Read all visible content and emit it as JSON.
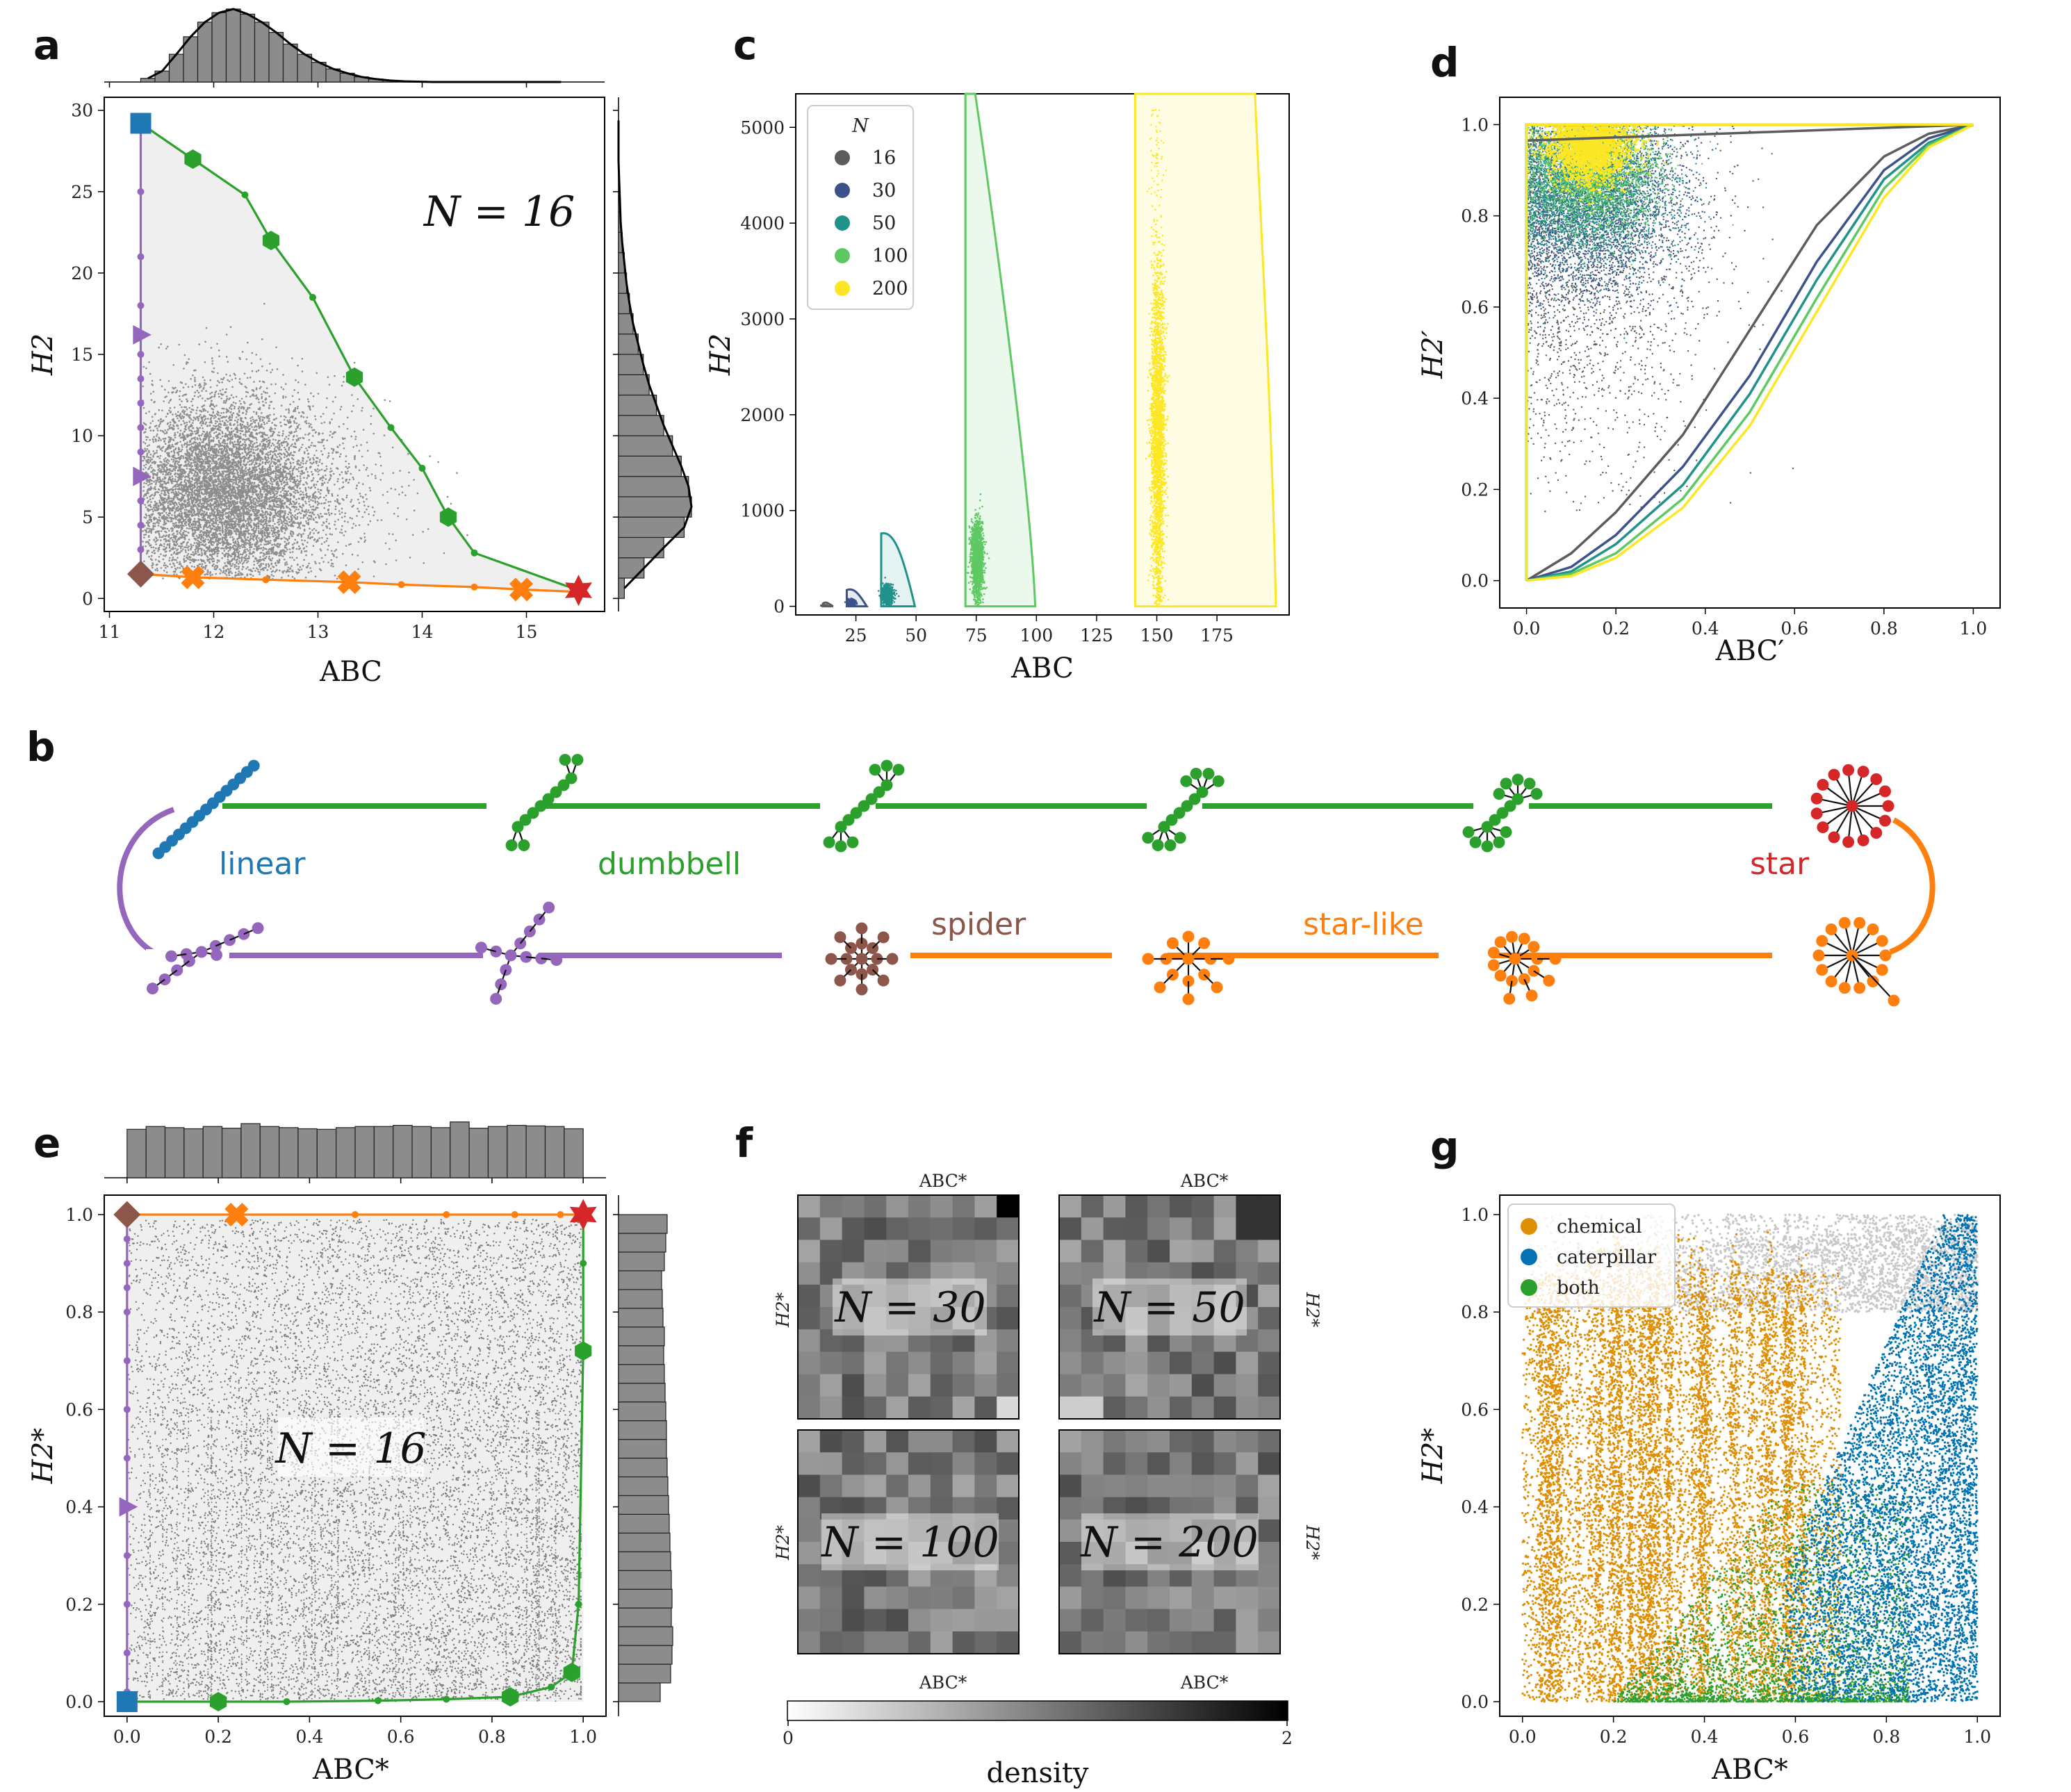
{
  "panels": {
    "a": "a",
    "b": "b",
    "c": "c",
    "d": "d",
    "e": "e",
    "f": "f",
    "g": "g"
  },
  "colors": {
    "linear": "#1f77b4",
    "dumbbell": "#2ca02c",
    "star": "#d62728",
    "spider": "#8c564b",
    "starlike": "#ff7f0e",
    "purple": "#9467bd",
    "gray": "#8c8c8c",
    "fill": "#efefef",
    "chemical": "#de8f05",
    "caterpillar": "#0173b2",
    "both": "#2ca02c",
    "lightgray": "#c8c8c8"
  },
  "panel_b": {
    "labels": {
      "linear": "linear",
      "dumbbell": "dumbbell",
      "star": "star",
      "spider": "spider",
      "starlike": "star-like"
    },
    "icons": [
      "line-tree-icon",
      "dumbbell-tree-icon",
      "star-tree-icon",
      "spider-tree-icon",
      "starlike-tree-icon",
      "broom-tree-icon"
    ]
  },
  "panel_f": {
    "labels": [
      "N = 30",
      "N = 50",
      "N = 100",
      "N = 200"
    ],
    "xlabel": "ABC*",
    "ylabel": "H2*",
    "colorbar": {
      "label": "density",
      "min": "0",
      "max": "2"
    }
  },
  "chart_data": [
    {
      "id": "a",
      "type": "scatter",
      "annotation": "N = 16",
      "xlabel": "ABC",
      "ylabel": "H2",
      "xlim": [
        10.95,
        15.75
      ],
      "ylim": [
        -0.8,
        30.8
      ],
      "xticks": [
        11,
        12,
        13,
        14,
        15
      ],
      "yticks": [
        0,
        5,
        10,
        15,
        20,
        25,
        30
      ],
      "cloud": {
        "x_mean": 12.1,
        "x_sd": 0.45,
        "y_mean": 6.5,
        "y_sd": 3.0
      },
      "hist_x": {
        "range": [
          11.3,
          15.4
        ],
        "counts": [
          0.05,
          0.15,
          0.38,
          0.62,
          0.82,
          0.95,
          1.0,
          0.93,
          0.82,
          0.68,
          0.52,
          0.38,
          0.27,
          0.18,
          0.12,
          0.07,
          0.04,
          0.02,
          0.01,
          0.005,
          0.0,
          0.0,
          0.0,
          0.0,
          0.0,
          0.0,
          0.0,
          0.0,
          0.0,
          0.0
        ]
      },
      "hist_y": {
        "range": [
          0,
          30
        ],
        "counts": [
          0.08,
          0.35,
          0.62,
          0.9,
          1.0,
          0.96,
          0.86,
          0.74,
          0.62,
          0.52,
          0.42,
          0.34,
          0.27,
          0.2,
          0.15,
          0.11,
          0.08,
          0.05,
          0.03,
          0.02,
          0.01,
          0.0,
          0.0,
          0.0
        ]
      },
      "series": [
        {
          "name": "dumbbell",
          "color": "#2ca02c",
          "x": [
            11.3,
            11.8,
            12.3,
            12.55,
            12.95,
            13.35,
            13.7,
            14.0,
            14.25,
            14.5,
            15.5
          ],
          "y": [
            29.2,
            27.0,
            24.8,
            22.0,
            18.5,
            13.6,
            10.5,
            8.0,
            5.0,
            2.8,
            0.5
          ],
          "markers": [
            1,
            3,
            5,
            8
          ]
        },
        {
          "name": "star-like",
          "color": "#ff7f0e",
          "x": [
            11.3,
            11.8,
            12.5,
            13.3,
            13.8,
            14.5,
            14.95,
            15.5
          ],
          "y": [
            1.5,
            1.3,
            1.15,
            1.0,
            0.85,
            0.7,
            0.55,
            0.4
          ],
          "markers": [
            1,
            3,
            6
          ]
        },
        {
          "name": "spider-line",
          "color": "#9467bd",
          "x": [
            11.3,
            11.3,
            11.3,
            11.3,
            11.3,
            11.3,
            11.3,
            11.3,
            11.3,
            11.3,
            11.3,
            11.3,
            11.3,
            11.3,
            11.3
          ],
          "y": [
            1.5,
            3,
            4.5,
            6,
            7.5,
            9,
            10.5,
            12,
            13.5,
            15,
            16.2,
            18,
            21,
            25,
            29.2
          ],
          "markers": [
            4,
            10
          ]
        }
      ],
      "endpoints": [
        {
          "name": "linear",
          "x": 11.3,
          "y": 29.2,
          "color": "#1f77b4",
          "shape": "square"
        },
        {
          "name": "spider",
          "x": 11.3,
          "y": 1.5,
          "color": "#8c564b",
          "shape": "diamond"
        },
        {
          "name": "star",
          "x": 15.5,
          "y": 0.5,
          "color": "#d62728",
          "shape": "star"
        }
      ],
      "xtick_labels": [
        "11",
        "12",
        "13",
        "14",
        "15"
      ],
      "ytick_labels": [
        "0",
        "5",
        "10",
        "15",
        "20",
        "25",
        "30"
      ]
    },
    {
      "id": "c",
      "type": "scatter",
      "xlabel": "ABC",
      "ylabel": "H2",
      "xlim": [
        0,
        205
      ],
      "ylim": [
        -90,
        5350
      ],
      "xticks": [
        25,
        50,
        75,
        100,
        125,
        150,
        175
      ],
      "yticks": [
        0,
        1000,
        2000,
        3000,
        4000,
        5000
      ],
      "legend_title": "N",
      "legend": [
        {
          "label": "16",
          "color": "#5c5c5c"
        },
        {
          "label": "30",
          "color": "#3b528b"
        },
        {
          "label": "50",
          "color": "#21918c"
        },
        {
          "label": "100",
          "color": "#5ec962"
        },
        {
          "label": "200",
          "color": "#fde725"
        }
      ],
      "groups": [
        {
          "N": "16",
          "color": "#5c5c5c",
          "xmin": 11.3,
          "xmax": 15.5,
          "ymax": 29,
          "cloud": [
            12,
            0.5,
            7,
            3
          ]
        },
        {
          "N": "30",
          "color": "#3b528b",
          "xmin": 21.2,
          "xmax": 29.5,
          "ymax": 170,
          "cloud": [
            23,
            0.8,
            40,
            15
          ]
        },
        {
          "N": "50",
          "color": "#21918c",
          "xmin": 35.5,
          "xmax": 49.5,
          "ymax": 760,
          "cloud": [
            38,
            1.2,
            120,
            50
          ]
        },
        {
          "N": "100",
          "color": "#5ec962",
          "xmin": 70.5,
          "xmax": 99.5,
          "ymax": 5350,
          "cloud": [
            75.5,
            1.2,
            500,
            200
          ]
        },
        {
          "N": "200",
          "color": "#fde725",
          "xmin": 141,
          "xmax": 199.5,
          "ymax": 5350,
          "cloud": [
            150.5,
            1.4,
            1800,
            900
          ]
        }
      ],
      "xtick_labels": [
        "25",
        "50",
        "75",
        "100",
        "125",
        "150",
        "175"
      ],
      "ytick_labels": [
        "0",
        "1000",
        "2000",
        "3000",
        "4000",
        "5000"
      ]
    },
    {
      "id": "d",
      "type": "scatter",
      "xlabel": "ABC′",
      "ylabel": "H2′",
      "xlim": [
        -0.06,
        1.06
      ],
      "ylim": [
        -0.06,
        1.06
      ],
      "xticks": [
        0,
        0.2,
        0.4,
        0.6,
        0.8,
        1.0
      ],
      "yticks": [
        0,
        0.2,
        0.4,
        0.6,
        0.8,
        1.0
      ],
      "cloud": {
        "x_mean": 0.14,
        "x_sd": 0.07,
        "y_mean": 0.86,
        "y_sd": 0.09
      },
      "lower_curves": [
        {
          "N": "16",
          "color": "#5c5c5c",
          "x": [
            0,
            0.1,
            0.2,
            0.35,
            0.5,
            0.65,
            0.8,
            0.9,
            1.0
          ],
          "y": [
            0,
            0.06,
            0.15,
            0.32,
            0.55,
            0.78,
            0.93,
            0.98,
            1.0
          ]
        },
        {
          "N": "30",
          "color": "#3b528b",
          "x": [
            0,
            0.1,
            0.2,
            0.35,
            0.5,
            0.65,
            0.8,
            0.9,
            1.0
          ],
          "y": [
            0,
            0.03,
            0.1,
            0.25,
            0.45,
            0.7,
            0.9,
            0.97,
            1.0
          ]
        },
        {
          "N": "50",
          "color": "#21918c",
          "x": [
            0,
            0.1,
            0.2,
            0.35,
            0.5,
            0.65,
            0.8,
            0.9,
            1.0
          ],
          "y": [
            0,
            0.02,
            0.08,
            0.21,
            0.41,
            0.66,
            0.88,
            0.96,
            1.0
          ]
        },
        {
          "N": "100",
          "color": "#5ec962",
          "x": [
            0,
            0.1,
            0.2,
            0.35,
            0.5,
            0.65,
            0.8,
            0.9,
            1.0
          ],
          "y": [
            0,
            0.015,
            0.06,
            0.18,
            0.37,
            0.62,
            0.86,
            0.955,
            1.0
          ]
        },
        {
          "N": "200",
          "color": "#fde725",
          "x": [
            0,
            0.1,
            0.2,
            0.35,
            0.5,
            0.65,
            0.8,
            0.9,
            1.0
          ],
          "y": [
            0,
            0.01,
            0.05,
            0.16,
            0.34,
            0.59,
            0.84,
            0.95,
            1.0
          ]
        }
      ],
      "xtick_labels": [
        "0.0",
        "0.2",
        "0.4",
        "0.6",
        "0.8",
        "1.0"
      ],
      "ytick_labels": [
        "0.0",
        "0.2",
        "0.4",
        "0.6",
        "0.8",
        "1.0"
      ]
    },
    {
      "id": "e",
      "type": "scatter",
      "annotation": "N = 16",
      "xlabel": "ABC*",
      "ylabel": "H2*",
      "xlim": [
        -0.05,
        1.05
      ],
      "ylim": [
        -0.03,
        1.04
      ],
      "xticks": [
        0,
        0.2,
        0.4,
        0.6,
        0.8,
        1.0
      ],
      "yticks": [
        0,
        0.2,
        0.4,
        0.6,
        0.8,
        1.0
      ],
      "hist_x": {
        "counts": [
          0.85,
          0.9,
          0.88,
          0.86,
          0.9,
          0.87,
          0.95,
          0.9,
          0.88,
          0.86,
          0.85,
          0.88,
          0.9,
          0.9,
          0.92,
          0.9,
          0.88,
          0.98,
          0.87,
          0.9,
          0.92,
          0.91,
          0.9,
          0.86
        ]
      },
      "hist_y": {
        "counts": [
          0.6,
          0.75,
          0.77,
          0.78,
          0.76,
          0.77,
          0.76,
          0.75,
          0.74,
          0.73,
          0.72,
          0.71,
          0.7,
          0.69,
          0.69,
          0.68,
          0.67,
          0.66,
          0.65,
          0.66,
          0.64,
          0.63,
          0.62,
          0.66,
          0.68,
          0.7
        ]
      },
      "series": [
        {
          "name": "dumbbell",
          "color": "#2ca02c",
          "x": [
            0,
            0.2,
            0.35,
            0.55,
            0.7,
            0.84,
            0.93,
            0.975,
            0.99,
            1.0,
            1.0,
            1.0
          ],
          "y": [
            0,
            0,
            0,
            0.002,
            0.005,
            0.01,
            0.03,
            0.06,
            0.2,
            0.72,
            0.9,
            1.0
          ],
          "markers": [
            1,
            5,
            7,
            9
          ]
        },
        {
          "name": "star-like",
          "color": "#ff7f0e",
          "x": [
            0,
            0.24,
            0.5,
            0.7,
            0.85,
            0.95,
            1.0
          ],
          "y": [
            1.0,
            1.0,
            1.0,
            1.0,
            1.0,
            1.0,
            1.0
          ],
          "markers": [
            1
          ]
        },
        {
          "name": "spider-line",
          "color": "#9467bd",
          "x": [
            0,
            0,
            0,
            0,
            0,
            0,
            0,
            0,
            0,
            0,
            0,
            0,
            0
          ],
          "y": [
            0.02,
            0.1,
            0.2,
            0.3,
            0.4,
            0.5,
            0.6,
            0.7,
            0.8,
            0.85,
            0.9,
            0.95,
            1.0
          ],
          "markers": [
            4
          ]
        }
      ],
      "endpoints": [
        {
          "name": "linear",
          "x": 0,
          "y": 0,
          "color": "#1f77b4",
          "shape": "square"
        },
        {
          "name": "spider",
          "x": 0,
          "y": 1,
          "color": "#8c564b",
          "shape": "diamond"
        },
        {
          "name": "star",
          "x": 1,
          "y": 1,
          "color": "#d62728",
          "shape": "star"
        }
      ],
      "xtick_labels": [
        "0.0",
        "0.2",
        "0.4",
        "0.6",
        "0.8",
        "1.0"
      ],
      "ytick_labels": [
        "0.0",
        "0.2",
        "0.4",
        "0.6",
        "0.8",
        "1.0"
      ]
    },
    {
      "id": "g",
      "type": "scatter",
      "xlabel": "ABC*",
      "ylabel": "H2*",
      "xlim": [
        -0.05,
        1.05
      ],
      "ylim": [
        -0.03,
        1.04
      ],
      "xticks": [
        0,
        0.2,
        0.4,
        0.6,
        0.8,
        1.0
      ],
      "yticks": [
        0,
        0.2,
        0.4,
        0.6,
        0.8,
        1.0
      ],
      "legend": [
        {
          "label": "chemical",
          "color": "#de8f05"
        },
        {
          "label": "caterpillar",
          "color": "#0173b2"
        },
        {
          "label": "both",
          "color": "#2ca02c"
        }
      ],
      "xtick_labels": [
        "0.0",
        "0.2",
        "0.4",
        "0.6",
        "0.8",
        "1.0"
      ],
      "ytick_labels": [
        "0.0",
        "0.2",
        "0.4",
        "0.6",
        "0.8",
        "1.0"
      ]
    }
  ]
}
